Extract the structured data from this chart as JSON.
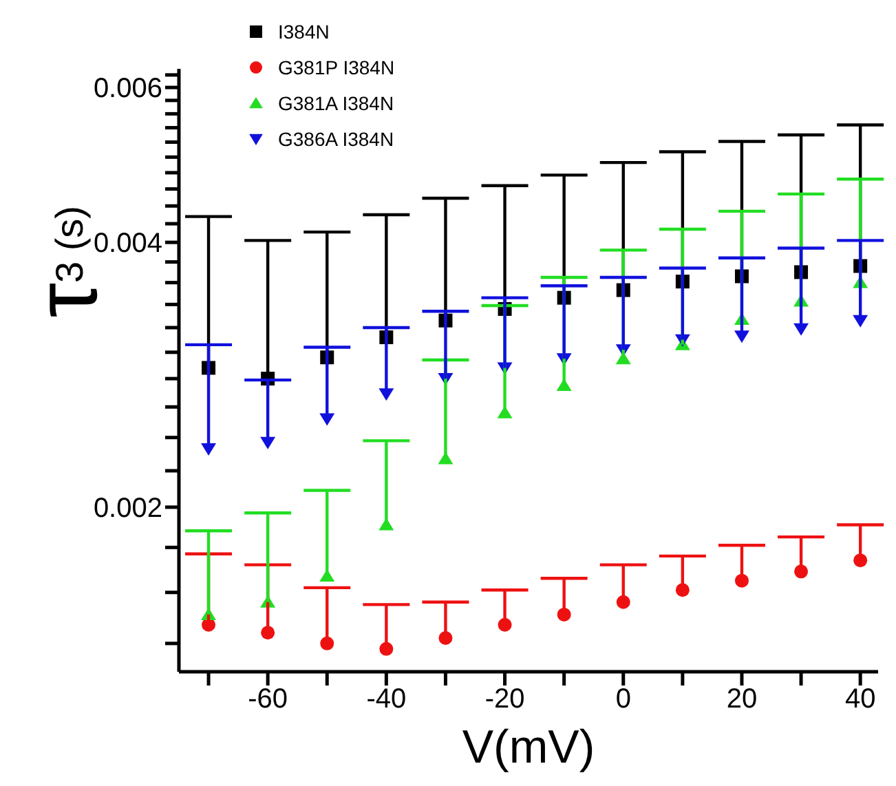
{
  "chart_data": {
    "type": "scatter",
    "xlabel": "V(mV)",
    "ylabel": "τ$_{3 (s)}$",
    "x": [
      -70,
      -60,
      -50,
      -40,
      -30,
      -20,
      -10,
      0,
      10,
      20,
      30,
      40
    ],
    "series": [
      {
        "name": "I384N",
        "color": "#000000",
        "marker": "square",
        "values": [
          0.00288,
          0.0028,
          0.00296,
          0.00312,
          0.00326,
          0.00336,
          0.00346,
          0.00353,
          0.00361,
          0.00366,
          0.0037,
          0.00376
        ],
        "errors": [
          [
            0.00288,
            0.00428
          ],
          [
            0.0028,
            0.00402
          ],
          [
            0.00296,
            0.00411
          ],
          [
            0.00312,
            0.0043
          ],
          [
            0.00326,
            0.00449
          ],
          [
            0.00336,
            0.00464
          ],
          [
            0.00346,
            0.00477
          ],
          [
            0.00353,
            0.00493
          ],
          [
            0.00361,
            0.00507
          ],
          [
            0.00366,
            0.00521
          ],
          [
            0.0037,
            0.0053
          ],
          [
            0.00376,
            0.00544
          ]
        ]
      },
      {
        "name": "G381P I384N",
        "color": "#ee1111",
        "marker": "circle",
        "values": [
          0.00147,
          0.00144,
          0.0014,
          0.00138,
          0.00142,
          0.00147,
          0.00151,
          0.00156,
          0.00161,
          0.00165,
          0.00169,
          0.00174
        ],
        "errors": [
          [
            0.00147,
            0.00177
          ],
          [
            0.00144,
            0.00172
          ],
          [
            0.0014,
            0.00162
          ],
          [
            0.00138,
            0.00155
          ],
          [
            0.00142,
            0.00156
          ],
          [
            0.00147,
            0.00161
          ],
          [
            0.00151,
            0.00166
          ],
          [
            0.00156,
            0.00172
          ],
          [
            0.00161,
            0.00176
          ],
          [
            0.00165,
            0.00181
          ],
          [
            0.00169,
            0.00185
          ],
          [
            0.00174,
            0.00191
          ]
        ]
      },
      {
        "name": "G381A I384N",
        "color": "#22dd22",
        "marker": "triangle",
        "values": [
          0.00151,
          0.00156,
          0.00167,
          0.00191,
          0.00227,
          0.00256,
          0.00275,
          0.00295,
          0.00306,
          0.00327,
          0.00343,
          0.0036
        ],
        "errors": [
          [
            0.00151,
            0.00188
          ],
          [
            0.00156,
            0.00197
          ],
          [
            0.00167,
            0.00209
          ],
          [
            0.00191,
            0.00238
          ],
          [
            0.00227,
            0.00294
          ],
          [
            0.00256,
            0.00339
          ],
          [
            0.00275,
            0.00365
          ],
          [
            0.00295,
            0.00392
          ],
          [
            0.00306,
            0.00414
          ],
          [
            0.00327,
            0.00434
          ],
          [
            0.00343,
            0.00454
          ],
          [
            0.0036,
            0.00472
          ]
        ]
      },
      {
        "name": "G386A I384N",
        "color": "#1111dd",
        "marker": "triangle-down",
        "values": [
          0.00233,
          0.00237,
          0.00252,
          0.00269,
          0.0028,
          0.00288,
          0.00295,
          0.00302,
          0.0031,
          0.00313,
          0.00319,
          0.00326
        ],
        "errors": [
          [
            0.00233,
            0.00306
          ],
          [
            0.00237,
            0.00279
          ],
          [
            0.00252,
            0.00304
          ],
          [
            0.00269,
            0.0032
          ],
          [
            0.0028,
            0.00334
          ],
          [
            0.00288,
            0.00346
          ],
          [
            0.00295,
            0.00357
          ],
          [
            0.00302,
            0.00365
          ],
          [
            0.0031,
            0.00374
          ],
          [
            0.00313,
            0.00384
          ],
          [
            0.00319,
            0.00394
          ],
          [
            0.00326,
            0.00402
          ]
        ]
      }
    ],
    "xlim": [
      -75,
      43
    ],
    "xticks": [
      {
        "value": -70,
        "label": null
      },
      -60,
      {
        "value": -50,
        "label": null
      },
      -40,
      {
        "value": -30,
        "label": null
      },
      -20,
      {
        "value": -10,
        "label": null
      },
      0,
      {
        "value": 10,
        "label": null
      },
      20,
      {
        "value": 30,
        "label": null
      },
      40
    ],
    "ylim": [
      0.0013,
      0.0063
    ],
    "log": true,
    "yticks": [
      {
        "value": 0.0014,
        "label": null
      },
      {
        "value": 0.0016,
        "label": null
      },
      {
        "value": 0.0018,
        "label": null
      },
      0.002,
      {
        "value": 0.0022,
        "label": null
      },
      {
        "value": 0.0024,
        "label": null
      },
      {
        "value": 0.0026,
        "label": null
      },
      {
        "value": 0.0028,
        "label": null
      },
      {
        "value": 0.003,
        "label": null
      },
      {
        "value": 0.0032,
        "label": null
      },
      {
        "value": 0.0034,
        "label": null
      },
      {
        "value": 0.0036,
        "label": null
      },
      {
        "value": 0.0038,
        "label": null
      },
      0.004,
      {
        "value": 0.0042,
        "label": null
      },
      {
        "value": 0.0044,
        "label": null
      },
      {
        "value": 0.0046,
        "label": null
      },
      {
        "value": 0.0048,
        "label": null
      },
      {
        "value": 0.005,
        "label": null
      },
      {
        "value": 0.0052,
        "label": null
      },
      {
        "value": 0.0054,
        "label": null
      },
      {
        "value": 0.0056,
        "label": null
      },
      {
        "value": 0.0058,
        "label": null
      },
      0.006,
      {
        "value": 0.0062,
        "label": null
      }
    ],
    "grid": false,
    "legend": "top left"
  }
}
